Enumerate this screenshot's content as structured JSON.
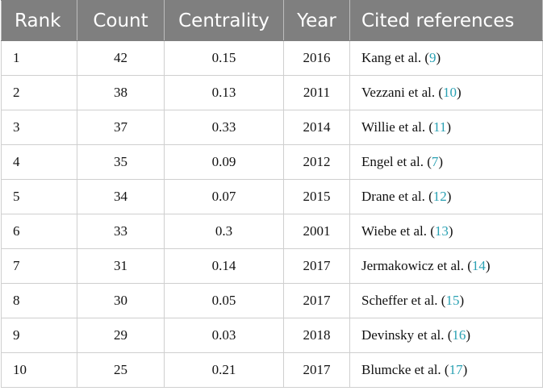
{
  "table": {
    "headers": [
      "Rank",
      "Count",
      "Centrality",
      "Year",
      "Cited references"
    ],
    "rows": [
      {
        "rank": "1",
        "count": "42",
        "centrality": "0.15",
        "year": "2016",
        "author": "Kang et al. (",
        "cite": "9",
        "close": ")"
      },
      {
        "rank": "2",
        "count": "38",
        "centrality": "0.13",
        "year": "2011",
        "author": "Vezzani et al. (",
        "cite": "10",
        "close": ")"
      },
      {
        "rank": "3",
        "count": "37",
        "centrality": "0.33",
        "year": "2014",
        "author": "Willie et al. (",
        "cite": "11",
        "close": ")"
      },
      {
        "rank": "4",
        "count": "35",
        "centrality": "0.09",
        "year": "2012",
        "author": "Engel et al. (",
        "cite": "7",
        "close": ")"
      },
      {
        "rank": "5",
        "count": "34",
        "centrality": "0.07",
        "year": "2015",
        "author": "Drane et al. (",
        "cite": "12",
        "close": ")"
      },
      {
        "rank": "6",
        "count": "33",
        "centrality": "0.3",
        "year": "2001",
        "author": "Wiebe et al. (",
        "cite": "13",
        "close": ")"
      },
      {
        "rank": "7",
        "count": "31",
        "centrality": "0.14",
        "year": "2017",
        "author": "Jermakowicz et al. (",
        "cite": "14",
        "close": ")"
      },
      {
        "rank": "8",
        "count": "30",
        "centrality": "0.05",
        "year": "2017",
        "author": "Scheffer et al. (",
        "cite": "15",
        "close": ")"
      },
      {
        "rank": "9",
        "count": "29",
        "centrality": "0.03",
        "year": "2018",
        "author": "Devinsky et al. (",
        "cite": "16",
        "close": ")"
      },
      {
        "rank": "10",
        "count": "25",
        "centrality": "0.21",
        "year": "2017",
        "author": "Blumcke et al. (",
        "cite": "17",
        "close": ")"
      }
    ]
  },
  "colors": {
    "header_background": "#7f7f7f",
    "header_text": "#ffffff",
    "citation_link": "#2aa1b3",
    "grid_lines": "#cfcfcf"
  }
}
